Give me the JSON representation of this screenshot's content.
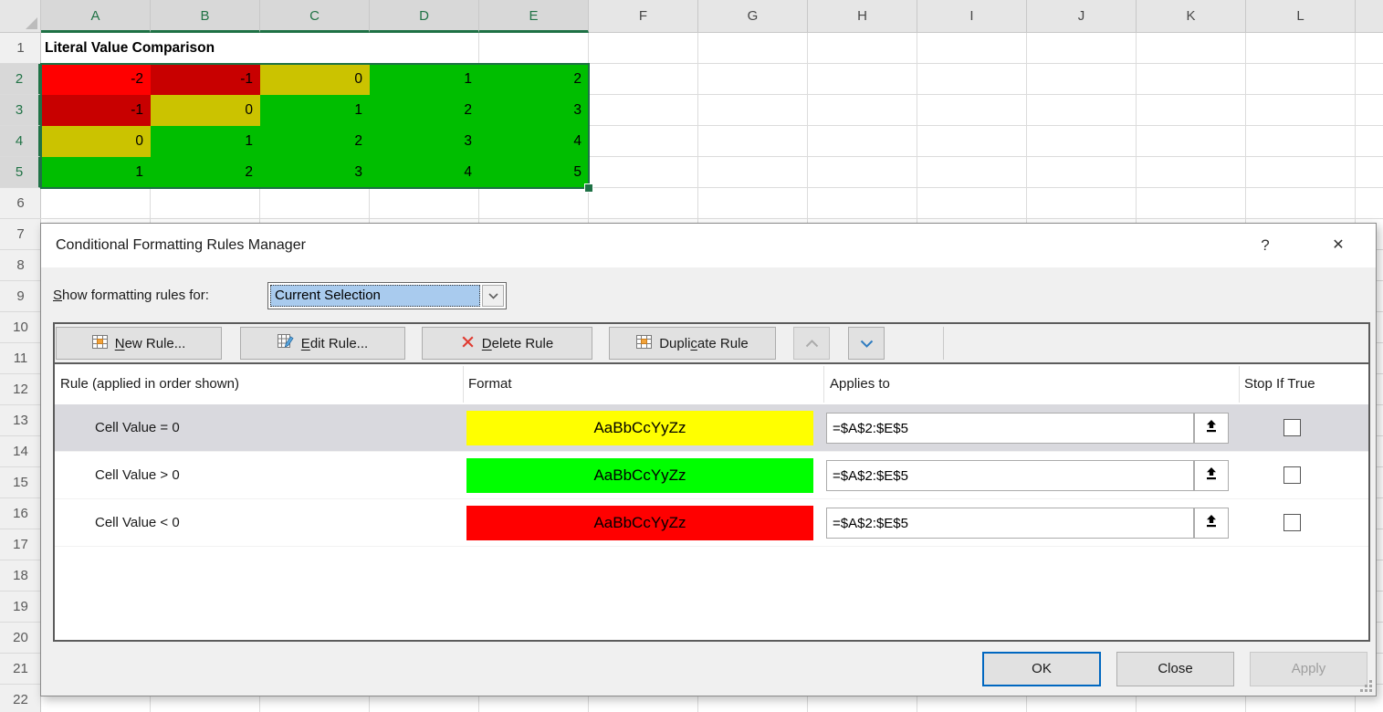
{
  "sheet": {
    "title_cell": "Literal Value Comparison",
    "columns": [
      "A",
      "B",
      "C",
      "D",
      "E",
      "F",
      "G",
      "H",
      "I",
      "J",
      "K",
      "L"
    ],
    "selected_columns": [
      "A",
      "B",
      "C",
      "D",
      "E"
    ],
    "row_numbers": [
      1,
      2,
      3,
      4,
      5,
      6,
      7,
      8,
      9,
      10,
      11,
      12,
      13,
      14,
      15,
      16,
      17,
      18,
      19,
      20,
      21,
      22
    ],
    "selected_rows": [
      2,
      3,
      4,
      5
    ],
    "selection_range": "A2:E5",
    "colors": {
      "active_red": "#FF0000",
      "red": "#C80000",
      "yellow": "#CBC300",
      "green": "#00BE00",
      "selection_accent": "#1E7145",
      "header_selected_text": "#217346"
    },
    "grid_rows": [
      {
        "row": 2,
        "cells": [
          {
            "v": "-2",
            "bg": "#FF0000",
            "active": true
          },
          {
            "v": "-1",
            "bg": "#C80000"
          },
          {
            "v": "0",
            "bg": "#CBC300"
          },
          {
            "v": "1",
            "bg": "#00BE00"
          },
          {
            "v": "2",
            "bg": "#00BE00"
          }
        ]
      },
      {
        "row": 3,
        "cells": [
          {
            "v": "-1",
            "bg": "#C80000"
          },
          {
            "v": "0",
            "bg": "#CBC300"
          },
          {
            "v": "1",
            "bg": "#00BE00"
          },
          {
            "v": "2",
            "bg": "#00BE00"
          },
          {
            "v": "3",
            "bg": "#00BE00"
          }
        ]
      },
      {
        "row": 4,
        "cells": [
          {
            "v": "0",
            "bg": "#CBC300"
          },
          {
            "v": "1",
            "bg": "#00BE00"
          },
          {
            "v": "2",
            "bg": "#00BE00"
          },
          {
            "v": "3",
            "bg": "#00BE00"
          },
          {
            "v": "4",
            "bg": "#00BE00"
          }
        ]
      },
      {
        "row": 5,
        "cells": [
          {
            "v": "1",
            "bg": "#00BE00"
          },
          {
            "v": "2",
            "bg": "#00BE00"
          },
          {
            "v": "3",
            "bg": "#00BE00"
          },
          {
            "v": "4",
            "bg": "#00BE00"
          },
          {
            "v": "5",
            "bg": "#00BE00"
          }
        ]
      }
    ]
  },
  "dialog": {
    "title": "Conditional Formatting Rules Manager",
    "help_glyph": "?",
    "close_glyph": "✕",
    "show_rules_label": {
      "text": "Show formatting rules for:",
      "u": 0
    },
    "show_rules_value": "Current Selection",
    "toolbar": {
      "new_rule": {
        "text": "New Rule...",
        "u": 0
      },
      "edit_rule": {
        "text": "Edit Rule...",
        "u": 0
      },
      "delete_rule": {
        "text": "Delete Rule",
        "u": 0
      },
      "duplicate_rule": {
        "text": "Duplicate Rule",
        "u": 5
      }
    },
    "icons": {
      "new_rule": "table-grid-icon",
      "edit_rule": "table-pencil-icon",
      "delete_rule": "red-x-icon",
      "duplicate_rule": "table-grid-icon",
      "move_up": "chevron-up-icon",
      "move_down": "chevron-down-icon",
      "dropdown": "chevron-down-icon",
      "range_picker": "collapse-dialog-arrow-icon"
    },
    "list_headers": {
      "rule": "Rule (applied in order shown)",
      "format": "Format",
      "applies_to": "Applies to",
      "stop": "Stop If True"
    },
    "format_sample_text": "AaBbCcYyZz",
    "rules": [
      {
        "condition": "Cell Value = 0",
        "format_bg": "#FFFF00",
        "applies_to": "=$A$2:$E$5",
        "stop_if_true": false,
        "selected": true
      },
      {
        "condition": "Cell Value > 0",
        "format_bg": "#00FF00",
        "applies_to": "=$A$2:$E$5",
        "stop_if_true": false,
        "selected": false
      },
      {
        "condition": "Cell Value < 0",
        "format_bg": "#FF0000",
        "applies_to": "=$A$2:$E$5",
        "stop_if_true": false,
        "selected": false
      }
    ],
    "footer": {
      "ok": "OK",
      "close": "Close",
      "apply": "Apply",
      "apply_enabled": false
    }
  }
}
